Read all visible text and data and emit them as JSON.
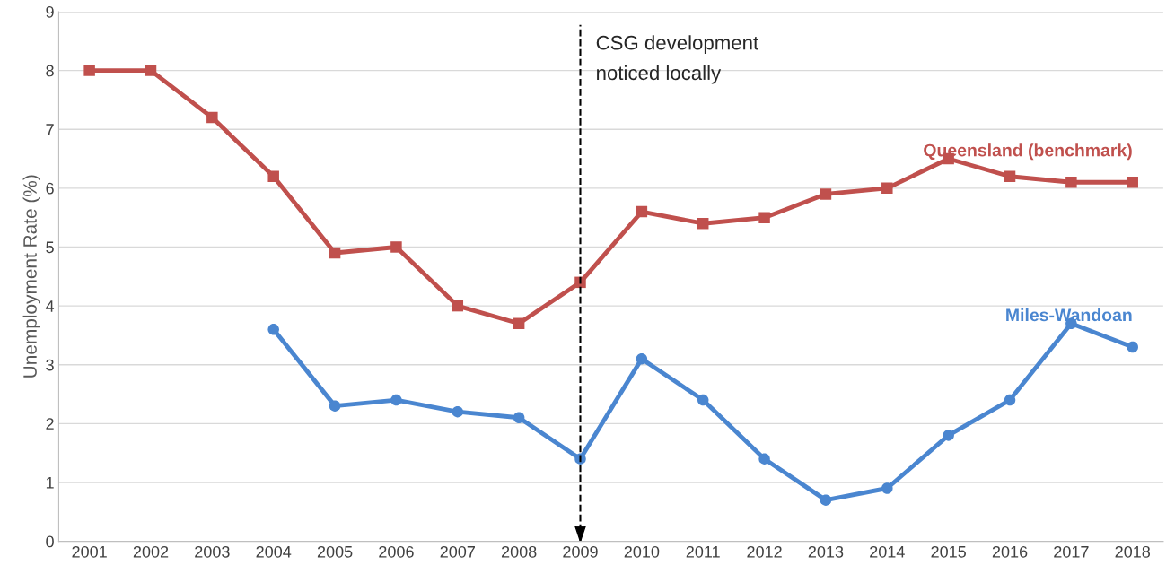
{
  "chart_data": {
    "type": "line",
    "ylabel": "Unemployment Rate (%)",
    "categories": [
      "2001",
      "2002",
      "2003",
      "2004",
      "2005",
      "2006",
      "2007",
      "2008",
      "2009",
      "2010",
      "2011",
      "2012",
      "2013",
      "2014",
      "2015",
      "2016",
      "2017",
      "2018"
    ],
    "series": [
      {
        "name": "Queensland (benchmark)",
        "color": "#c0504d",
        "marker": "square",
        "values": [
          8,
          8,
          7.2,
          6.2,
          4.9,
          5,
          4,
          3.7,
          4.4,
          5.6,
          5.4,
          5.5,
          5.9,
          6,
          6.5,
          6.2,
          6.1,
          6.1
        ]
      },
      {
        "name": "Miles-Wandoan",
        "color": "#4a86d0",
        "marker": "circle",
        "values": [
          null,
          null,
          null,
          3.6,
          2.3,
          2.4,
          2.2,
          2.1,
          1.4,
          3.1,
          2.4,
          1.4,
          0.7,
          0.9,
          1.8,
          2.4,
          3.7,
          3.3
        ]
      }
    ],
    "ylim": [
      0,
      9
    ],
    "yticks": [
      0,
      1,
      2,
      3,
      4,
      5,
      6,
      7,
      8,
      9
    ],
    "grid": "y",
    "line_style": "solid",
    "legend": false,
    "ref_lines": [
      {
        "axis": "x",
        "value": "2009",
        "label": "CSG development\nnoticed locally",
        "line_style": "dashed",
        "color": "#000000"
      }
    ]
  }
}
